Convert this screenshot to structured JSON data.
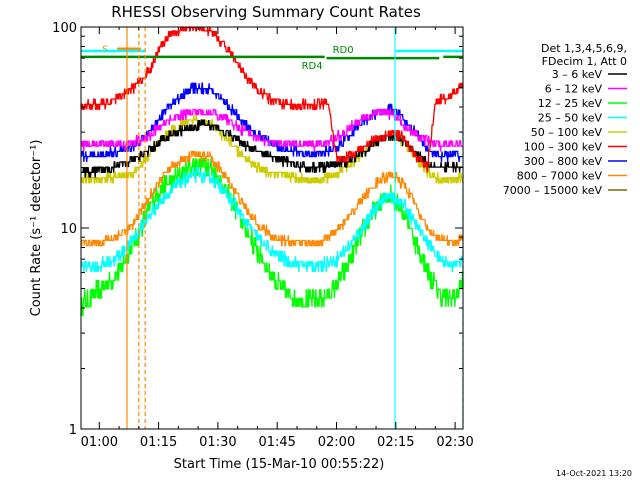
{
  "chart_data": {
    "type": "line",
    "title": "RHESSI Observing Summary Count Rates",
    "xlabel": "Start Time (15-Mar-10 00:55:22)",
    "ylabel": "Count Rate (s⁻¹ detector⁻¹)",
    "y_scale": "log",
    "ylim": [
      1,
      100
    ],
    "xlim_minutes": [
      55.37,
      152.0
    ],
    "x_ticks": [
      {
        "m": 60,
        "label": "01:00"
      },
      {
        "m": 75,
        "label": "01:15"
      },
      {
        "m": 90,
        "label": "01:30"
      },
      {
        "m": 105,
        "label": "01:45"
      },
      {
        "m": 120,
        "label": "02:00"
      },
      {
        "m": 135,
        "label": "02:15"
      },
      {
        "m": 150,
        "label": "02:30"
      }
    ],
    "y_ticks": [
      {
        "v": 1,
        "label": "1"
      },
      {
        "v": 10,
        "label": "10"
      },
      {
        "v": 100,
        "label": "100"
      }
    ],
    "legend": {
      "header": [
        "Det 1,3,4,5,6,9,",
        "FDecim 1, Att 0"
      ],
      "placement": "right"
    },
    "series": [
      {
        "name": "3 - 6 keV",
        "label": "3 – 6 keV",
        "color": "#000000",
        "points": [
          [
            55.4,
            19
          ],
          [
            60,
            19
          ],
          [
            64,
            20.5
          ],
          [
            68,
            21.5
          ],
          [
            72,
            24
          ],
          [
            78,
            29
          ],
          [
            82,
            31
          ],
          [
            86,
            33
          ],
          [
            89,
            32
          ],
          [
            93,
            29
          ],
          [
            97,
            26
          ],
          [
            100,
            24
          ],
          [
            104,
            22.5
          ],
          [
            108,
            21
          ],
          [
            112,
            20
          ],
          [
            116,
            20
          ],
          [
            120,
            20.5
          ],
          [
            124,
            22
          ],
          [
            128,
            25
          ],
          [
            131,
            27.5
          ],
          [
            134,
            29
          ],
          [
            137,
            27
          ],
          [
            140,
            24
          ],
          [
            143,
            21
          ],
          [
            146,
            20
          ],
          [
            150,
            20
          ],
          [
            152,
            20
          ]
        ]
      },
      {
        "name": "6 - 12 keV",
        "label": "6 – 12 keV",
        "color": "#ff00ff",
        "points": [
          [
            55.4,
            26
          ],
          [
            60,
            26
          ],
          [
            64,
            26
          ],
          [
            68,
            26
          ],
          [
            72,
            28
          ],
          [
            76,
            33
          ],
          [
            80,
            36
          ],
          [
            84,
            38
          ],
          [
            88,
            38
          ],
          [
            92,
            35
          ],
          [
            96,
            31
          ],
          [
            100,
            28
          ],
          [
            104,
            26.5
          ],
          [
            108,
            26
          ],
          [
            112,
            26
          ],
          [
            116,
            26
          ],
          [
            120,
            28
          ],
          [
            124,
            32
          ],
          [
            128,
            36
          ],
          [
            131,
            38
          ],
          [
            134,
            37
          ],
          [
            137,
            33
          ],
          [
            140,
            29
          ],
          [
            143,
            27
          ],
          [
            146,
            26
          ],
          [
            150,
            26
          ],
          [
            152,
            26
          ]
        ]
      },
      {
        "name": "12 - 25 keV",
        "label": "12 – 25 keV",
        "color": "#00ff00",
        "points": [
          [
            55.4,
            4.2
          ],
          [
            58,
            4.5
          ],
          [
            62,
            5.2
          ],
          [
            66,
            6.5
          ],
          [
            70,
            9.5
          ],
          [
            73,
            13
          ],
          [
            76,
            16
          ],
          [
            80,
            18
          ],
          [
            84,
            20.5
          ],
          [
            87,
            21
          ],
          [
            90,
            18
          ],
          [
            94,
            13
          ],
          [
            98,
            9
          ],
          [
            102,
            6.5
          ],
          [
            106,
            5
          ],
          [
            110,
            4.4
          ],
          [
            114,
            4.3
          ],
          [
            118,
            4.6
          ],
          [
            122,
            6
          ],
          [
            126,
            9
          ],
          [
            130,
            12.5
          ],
          [
            133,
            14.5
          ],
          [
            135,
            14
          ],
          [
            138,
            11
          ],
          [
            141,
            7.5
          ],
          [
            144,
            5.5
          ],
          [
            147,
            4.5
          ],
          [
            150,
            4.5
          ],
          [
            152,
            5.5
          ]
        ]
      },
      {
        "name": "25 - 50 keV",
        "label": "25 – 50 keV",
        "color": "#00ffff",
        "points": [
          [
            55.4,
            6.5
          ],
          [
            60,
            6.5
          ],
          [
            64,
            7
          ],
          [
            68,
            8.5
          ],
          [
            72,
            11
          ],
          [
            76,
            14
          ],
          [
            80,
            16.5
          ],
          [
            84,
            18.5
          ],
          [
            88,
            18
          ],
          [
            92,
            15
          ],
          [
            96,
            11.5
          ],
          [
            100,
            9
          ],
          [
            104,
            7.5
          ],
          [
            108,
            6.8
          ],
          [
            112,
            6.5
          ],
          [
            116,
            6.5
          ],
          [
            120,
            7
          ],
          [
            124,
            8.5
          ],
          [
            128,
            11
          ],
          [
            131,
            13.5
          ],
          [
            134,
            14.5
          ],
          [
            137,
            13
          ],
          [
            140,
            10.5
          ],
          [
            143,
            8.5
          ],
          [
            146,
            7
          ],
          [
            150,
            6.5
          ],
          [
            152,
            7
          ]
        ]
      },
      {
        "name": "50 - 100 keV",
        "label": "50 – 100 keV",
        "color": "#cccc00",
        "points": [
          [
            55.4,
            17.5
          ],
          [
            60,
            17.5
          ],
          [
            64,
            18
          ],
          [
            68,
            18.5
          ],
          [
            72,
            22
          ],
          [
            76,
            28
          ],
          [
            80,
            32
          ],
          [
            84,
            35
          ],
          [
            88,
            33
          ],
          [
            92,
            28
          ],
          [
            96,
            23
          ],
          [
            100,
            20
          ],
          [
            104,
            18.5
          ],
          [
            108,
            18
          ],
          [
            112,
            17.5
          ],
          [
            116,
            17.5
          ],
          [
            120,
            18.5
          ],
          [
            124,
            21
          ],
          [
            128,
            25
          ],
          [
            131,
            28
          ],
          [
            134,
            29
          ],
          [
            137,
            27
          ],
          [
            140,
            22
          ],
          [
            143,
            19
          ],
          [
            146,
            17.5
          ],
          [
            150,
            17.5
          ],
          [
            152,
            18
          ]
        ]
      },
      {
        "name": "100 - 300 keV",
        "label": "100 – 300 keV",
        "color": "#ff0000",
        "points": [
          [
            55.4,
            40
          ],
          [
            58,
            41
          ],
          [
            62,
            42
          ],
          [
            66,
            46
          ],
          [
            70,
            52
          ],
          [
            73,
            63
          ],
          [
            75,
            78
          ],
          [
            78,
            92
          ],
          [
            82,
            100
          ],
          [
            85,
            102
          ],
          [
            88,
            96
          ],
          [
            91,
            84
          ],
          [
            94,
            70
          ],
          [
            97,
            57
          ],
          [
            100,
            49
          ],
          [
            103,
            44
          ],
          [
            106,
            42
          ],
          [
            110,
            41
          ],
          [
            114,
            41
          ],
          [
            118,
            42
          ],
          [
            120,
            22
          ],
          [
            124,
            23
          ],
          [
            128,
            26
          ],
          [
            131,
            28
          ],
          [
            134,
            30
          ],
          [
            137,
            28
          ],
          [
            140,
            23
          ],
          [
            143,
            20
          ],
          [
            145,
            42
          ],
          [
            148,
            45
          ],
          [
            150,
            47
          ],
          [
            152,
            52
          ]
        ]
      },
      {
        "name": "300 - 800 keV",
        "label": "300 – 800 keV",
        "color": "#0000ff",
        "points": [
          [
            55.4,
            23
          ],
          [
            60,
            23
          ],
          [
            64,
            24
          ],
          [
            68,
            25
          ],
          [
            72,
            29
          ],
          [
            76,
            37
          ],
          [
            80,
            44
          ],
          [
            84,
            50
          ],
          [
            88,
            49
          ],
          [
            92,
            42
          ],
          [
            96,
            34
          ],
          [
            100,
            29
          ],
          [
            104,
            26
          ],
          [
            108,
            24.5
          ],
          [
            112,
            23.5
          ],
          [
            116,
            23.5
          ],
          [
            120,
            25
          ],
          [
            124,
            30
          ],
          [
            128,
            35
          ],
          [
            131,
            38
          ],
          [
            134,
            39
          ],
          [
            137,
            35
          ],
          [
            140,
            30
          ],
          [
            143,
            25
          ],
          [
            146,
            23
          ],
          [
            150,
            23
          ],
          [
            152,
            23
          ]
        ]
      },
      {
        "name": "800 - 7000 keV",
        "label": "800 – 7000 keV",
        "color": "#ff8800",
        "points": [
          [
            55.4,
            8.5
          ],
          [
            60,
            8.5
          ],
          [
            64,
            9
          ],
          [
            68,
            10
          ],
          [
            72,
            13.5
          ],
          [
            76,
            18
          ],
          [
            80,
            21
          ],
          [
            84,
            23.5
          ],
          [
            88,
            22.5
          ],
          [
            92,
            18
          ],
          [
            96,
            13.5
          ],
          [
            100,
            10.5
          ],
          [
            104,
            9
          ],
          [
            108,
            8.5
          ],
          [
            112,
            8.5
          ],
          [
            116,
            8.5
          ],
          [
            120,
            9.5
          ],
          [
            124,
            12
          ],
          [
            128,
            15
          ],
          [
            131,
            17.5
          ],
          [
            134,
            18.5
          ],
          [
            137,
            16.5
          ],
          [
            140,
            13
          ],
          [
            143,
            10
          ],
          [
            146,
            8.8
          ],
          [
            150,
            8.5
          ],
          [
            152,
            9
          ]
        ]
      },
      {
        "name": "7000 - 15000 keV",
        "label": "7000 – 15000 keV",
        "color": "#886600",
        "points": []
      }
    ],
    "markers": [
      {
        "type": "interval",
        "label": "S",
        "color": "#ff8800",
        "start": 64.5,
        "end": 70.5,
        "level": 78
      },
      {
        "type": "interval",
        "label": "",
        "color": "#00ffff",
        "start": 55.4,
        "end": 71.5,
        "level": 76
      },
      {
        "type": "interval",
        "label": "",
        "color": "#00ffff",
        "start": 135.0,
        "end": 152.0,
        "level": 76
      },
      {
        "type": "interval",
        "label": "RD0",
        "color": "#008800",
        "start": 117.5,
        "end": 146.0,
        "level": 70
      },
      {
        "type": "interval",
        "label": "",
        "color": "#008800",
        "start": 147.0,
        "end": 152.0,
        "level": 71
      },
      {
        "type": "interval",
        "label": "RD4",
        "color": "#008800",
        "start": 55.4,
        "end": 117.0,
        "level": 71
      },
      {
        "type": "vline",
        "color": "#ff8800",
        "style": "solid",
        "x": 67.0
      },
      {
        "type": "vline",
        "color": "#ff8800",
        "style": "dashed",
        "x": 70.0
      },
      {
        "type": "vline",
        "color": "#ff8800",
        "style": "dashed",
        "x": 71.6
      },
      {
        "type": "vline",
        "color": "#00ffff",
        "style": "solid",
        "x": 134.8
      },
      {
        "type": "vline",
        "color": "#00ffff",
        "style": "dashed",
        "x": 152.0
      }
    ],
    "timestamp": "14-Oct-2021 13:20"
  }
}
